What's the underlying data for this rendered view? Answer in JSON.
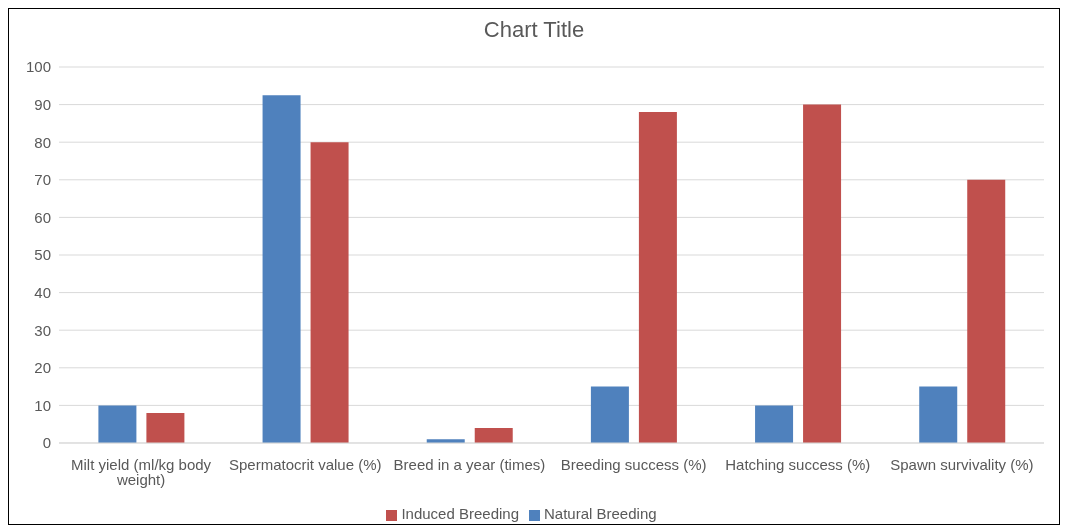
{
  "chart_data": {
    "type": "bar",
    "title": "Chart Title",
    "categories": [
      "Milt yield (ml/kg body weight)",
      "Spermatocrit value (%)",
      "Breed in a year (times)",
      "Breeding success (%)",
      "Hatching success (%)",
      "Spawn survivality (%)"
    ],
    "series": [
      {
        "name": "Natural Breeding",
        "color": "#4f81bd",
        "values": [
          10,
          92.5,
          1,
          15,
          10,
          15
        ]
      },
      {
        "name": "Induced Breeding",
        "color": "#c0504d",
        "values": [
          8,
          80,
          4,
          88,
          90,
          70
        ]
      }
    ],
    "ylim": [
      0,
      100
    ],
    "yticks": [
      0,
      10,
      20,
      30,
      40,
      50,
      60,
      70,
      80,
      90,
      100
    ],
    "grid": "y",
    "legend": "bottom"
  }
}
